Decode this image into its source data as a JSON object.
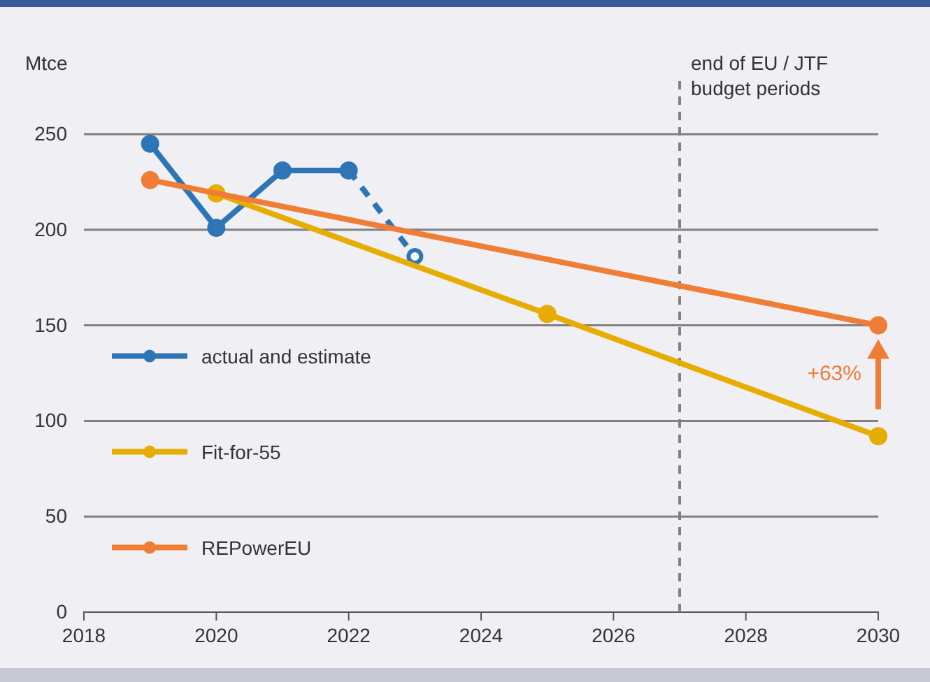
{
  "chart_data": {
    "type": "line",
    "ylabel": "Mtce",
    "xlim": [
      2018,
      2030
    ],
    "xticks": [
      2018,
      2020,
      2022,
      2024,
      2026,
      2028,
      2030
    ],
    "ylim": [
      0,
      250
    ],
    "yticks": [
      0,
      50,
      100,
      150,
      200,
      250
    ],
    "grid": "y",
    "legend": "left",
    "marker": "circle",
    "series": [
      {
        "name": "actual and estimate",
        "color": "#2e75b6",
        "x": [
          2019,
          2020,
          2021,
          2022
        ],
        "values": [
          245,
          201,
          231,
          231
        ]
      },
      {
        "color": "#2e75b6",
        "x": [
          2022,
          2023
        ],
        "values": [
          231,
          186
        ],
        "line_style": "dashed"
      },
      {
        "name": "Fit-for-55",
        "color": "#e6ac00",
        "x": [
          2020,
          2025,
          2030
        ],
        "values": [
          219,
          156,
          92
        ]
      },
      {
        "name": "REPowerEU",
        "color": "#ef7d35",
        "x": [
          2019,
          2030
        ],
        "values": [
          226,
          150
        ]
      }
    ],
    "ref_lines": [
      {
        "axis": "x",
        "value": 2027,
        "label": "end of EU / JTF\nbudget periods",
        "color": "#808080",
        "line_style": "dashed"
      }
    ],
    "annotations": [
      {
        "text": "+63%",
        "x": 2030,
        "y": 150
      }
    ]
  }
}
